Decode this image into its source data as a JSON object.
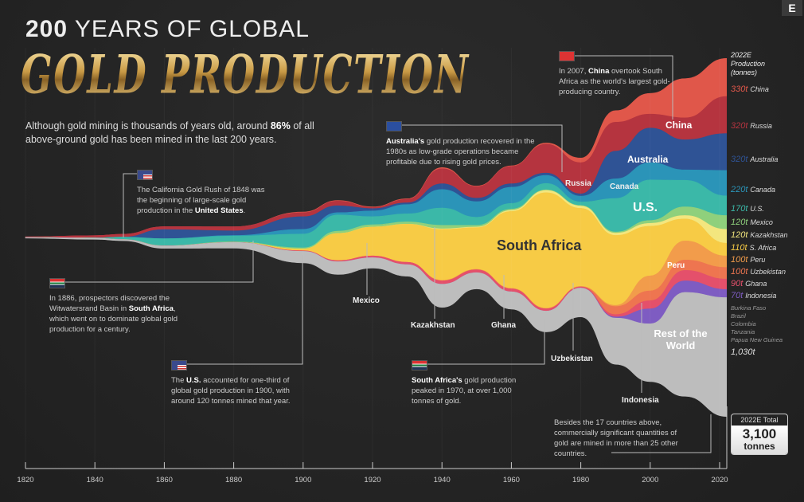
{
  "header": {
    "title_bold": "200",
    "title_rest": " YEARS OF GLOBAL",
    "title_main": "GOLD PRODUCTION",
    "intro_a": "Although gold mining is thousands of years old, around ",
    "intro_b": "86%",
    "intro_c": " of all above-ground gold has been mined in the last 200 years.",
    "logo": "E"
  },
  "annotations": {
    "us1848": {
      "flag": "us-flag",
      "a": "The California Gold Rush of 1848 was the beginning of large-scale gold production in the ",
      "b": "United States",
      "c": "."
    },
    "sa1886": {
      "flag": "south-africa-flag",
      "a": "In 1886, prospectors discovered the Witwatersrand Basin in ",
      "b": "South Africa",
      "c": ", which went on to dominate global gold production for a century."
    },
    "us1900": {
      "flag": "us-flag",
      "a": "The ",
      "b": "U.S.",
      "c": " accounted for one-third of global gold production in 1900, with around 120 tonnes mined that year."
    },
    "australia": {
      "flag": "australia-flag",
      "b": "Australia's",
      "c": " gold production recovered in the 1980s as low-grade operations became profitable due to rising gold prices."
    },
    "sa1970": {
      "flag": "south-africa-flag",
      "b": "South Africa's",
      "c": " gold production peaked in 1970, at over 1,000 tonnes of gold."
    },
    "china": {
      "flag": "china-flag",
      "a": "In 2007, ",
      "b": "China",
      "c": " overtook South Africa as the world's largest gold-producing country."
    },
    "others": "Besides the 17 countries above, commercially significant quantities of gold are mined in more than 25 other countries."
  },
  "legend": {
    "title": "2022E Production (tonnes)",
    "minor": [
      "Burkina Faso",
      "Brazil",
      "Colombia",
      "Tanzania",
      "Papua New Guinea"
    ],
    "rest_value": "1,030t"
  },
  "total": {
    "label": "2022E Total",
    "value": "3,100",
    "unit": "tonnes"
  },
  "chart_data": {
    "type": "area",
    "subtype": "streamgraph",
    "xlabel": "",
    "ylabel": "",
    "xlim": [
      1820,
      2022
    ],
    "x_ticks": [
      1820,
      1840,
      1860,
      1880,
      1900,
      1920,
      1940,
      1960,
      1980,
      2000,
      2020
    ],
    "x": [
      1820,
      1840,
      1848,
      1860,
      1880,
      1900,
      1910,
      1920,
      1930,
      1940,
      1950,
      1960,
      1970,
      1980,
      1990,
      2000,
      2010,
      2022
    ],
    "series": [
      {
        "name": "China",
        "label": "China",
        "value_2022": "330t",
        "color": "#e0574a",
        "values": [
          0,
          0,
          0,
          0,
          0,
          5,
          5,
          5,
          5,
          10,
          5,
          5,
          10,
          40,
          100,
          180,
          340,
          330
        ]
      },
      {
        "name": "Russia",
        "label": "Russia",
        "value_2022": "320t",
        "color": "#b5343f",
        "values": [
          5,
          20,
          25,
          25,
          35,
          35,
          40,
          10,
          30,
          130,
          100,
          150,
          250,
          270,
          250,
          120,
          190,
          320
        ]
      },
      {
        "name": "Australia",
        "label": "Australia",
        "value_2022": "320t",
        "color": "#2f5395",
        "values": [
          0,
          0,
          0,
          80,
          40,
          110,
          60,
          20,
          15,
          50,
          30,
          30,
          20,
          20,
          240,
          300,
          260,
          320
        ]
      },
      {
        "name": "Canada",
        "label": "Canada",
        "value_2022": "220t",
        "color": "#2b94b8",
        "values": [
          0,
          0,
          0,
          0,
          5,
          40,
          20,
          50,
          80,
          160,
          135,
          140,
          70,
          50,
          170,
          150,
          90,
          220
        ]
      },
      {
        "name": "U.S.",
        "label": "U.S.",
        "value_2022": "170t",
        "color": "#3bb8a8",
        "values": [
          0,
          0,
          20,
          60,
          50,
          120,
          140,
          70,
          70,
          150,
          70,
          50,
          55,
          30,
          290,
          350,
          230,
          170
        ]
      },
      {
        "name": "Mexico",
        "label": "Mexico",
        "value_2022": "120t",
        "color": "#8fd07c",
        "values": [
          1,
          2,
          2,
          3,
          5,
          10,
          20,
          20,
          20,
          30,
          15,
          10,
          5,
          5,
          10,
          25,
          75,
          120
        ]
      },
      {
        "name": "Kazakhstan",
        "label": "Kazakhstan",
        "value_2022": "120t",
        "color": "#f3e67e",
        "values": [
          0,
          0,
          0,
          0,
          0,
          0,
          0,
          0,
          0,
          5,
          5,
          10,
          20,
          20,
          20,
          25,
          30,
          120
        ]
      },
      {
        "name": "S. Africa",
        "label": "South Africa",
        "value_2022": "110t",
        "color": "#f7cb45",
        "values": [
          0,
          0,
          0,
          0,
          0,
          15,
          235,
          250,
          330,
          440,
          360,
          665,
          1000,
          675,
          605,
          430,
          190,
          110
        ]
      },
      {
        "name": "Peru",
        "label": "Peru",
        "value_2022": "100t",
        "color": "#f29c4b",
        "values": [
          0,
          0,
          0,
          0,
          0,
          0,
          0,
          0,
          0,
          5,
          5,
          5,
          5,
          5,
          10,
          130,
          165,
          100
        ]
      },
      {
        "name": "Uzbekistan",
        "label": "Uzbekistan",
        "value_2022": "100t",
        "color": "#ee7550",
        "values": [
          0,
          0,
          0,
          0,
          0,
          0,
          0,
          0,
          0,
          0,
          0,
          0,
          0,
          0,
          70,
          85,
          90,
          100
        ]
      },
      {
        "name": "Ghana",
        "label": "Ghana",
        "value_2022": "90t",
        "color": "#e4506b",
        "values": [
          0,
          0,
          0,
          0,
          0,
          5,
          10,
          15,
          20,
          30,
          25,
          25,
          20,
          10,
          20,
          70,
          90,
          90
        ]
      },
      {
        "name": "Indonesia",
        "label": "Indonesia",
        "value_2022": "70t",
        "color": "#7e5cc2",
        "values": [
          0,
          0,
          0,
          0,
          0,
          0,
          0,
          0,
          0,
          0,
          0,
          0,
          0,
          0,
          10,
          130,
          100,
          70
        ]
      },
      {
        "name": "Rest of the World",
        "label": "Rest of the World",
        "value_2022": "1,030t",
        "color": "#bdbdbd",
        "values": [
          5,
          10,
          10,
          20,
          50,
          100,
          110,
          90,
          100,
          200,
          140,
          150,
          180,
          250,
          400,
          500,
          900,
          1030
        ]
      }
    ]
  }
}
